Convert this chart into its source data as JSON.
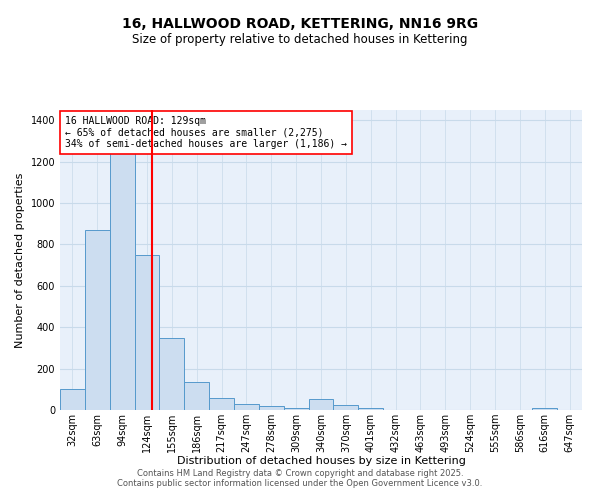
{
  "title": "16, HALLWOOD ROAD, KETTERING, NN16 9RG",
  "subtitle": "Size of property relative to detached houses in Kettering",
  "xlabel": "Distribution of detached houses by size in Kettering",
  "ylabel": "Number of detached properties",
  "categories": [
    "32sqm",
    "63sqm",
    "94sqm",
    "124sqm",
    "155sqm",
    "186sqm",
    "217sqm",
    "247sqm",
    "278sqm",
    "309sqm",
    "340sqm",
    "370sqm",
    "401sqm",
    "432sqm",
    "463sqm",
    "493sqm",
    "524sqm",
    "555sqm",
    "586sqm",
    "616sqm",
    "647sqm"
  ],
  "values": [
    100,
    870,
    1300,
    750,
    350,
    135,
    60,
    30,
    20,
    12,
    55,
    25,
    12,
    0,
    0,
    0,
    0,
    0,
    0,
    12,
    0
  ],
  "bar_color": "#ccddf0",
  "bar_edge_color": "#5599cc",
  "vline_color": "red",
  "vline_linewidth": 1.5,
  "vline_pos": 3.2,
  "annotation_text": "16 HALLWOOD ROAD: 129sqm\n← 65% of detached houses are smaller (2,275)\n34% of semi-detached houses are larger (1,186) →",
  "annotation_box_edge": "red",
  "annotation_box_face": "white",
  "ylim": [
    0,
    1450
  ],
  "yticks": [
    0,
    200,
    400,
    600,
    800,
    1000,
    1200,
    1400
  ],
  "grid_color": "#c8daea",
  "background_color": "#e8f0fa",
  "footer1": "Contains HM Land Registry data © Crown copyright and database right 2025.",
  "footer2": "Contains public sector information licensed under the Open Government Licence v3.0.",
  "title_fontsize": 10,
  "subtitle_fontsize": 8.5,
  "axis_label_fontsize": 8,
  "tick_fontsize": 7,
  "annotation_fontsize": 7,
  "footer_fontsize": 6
}
